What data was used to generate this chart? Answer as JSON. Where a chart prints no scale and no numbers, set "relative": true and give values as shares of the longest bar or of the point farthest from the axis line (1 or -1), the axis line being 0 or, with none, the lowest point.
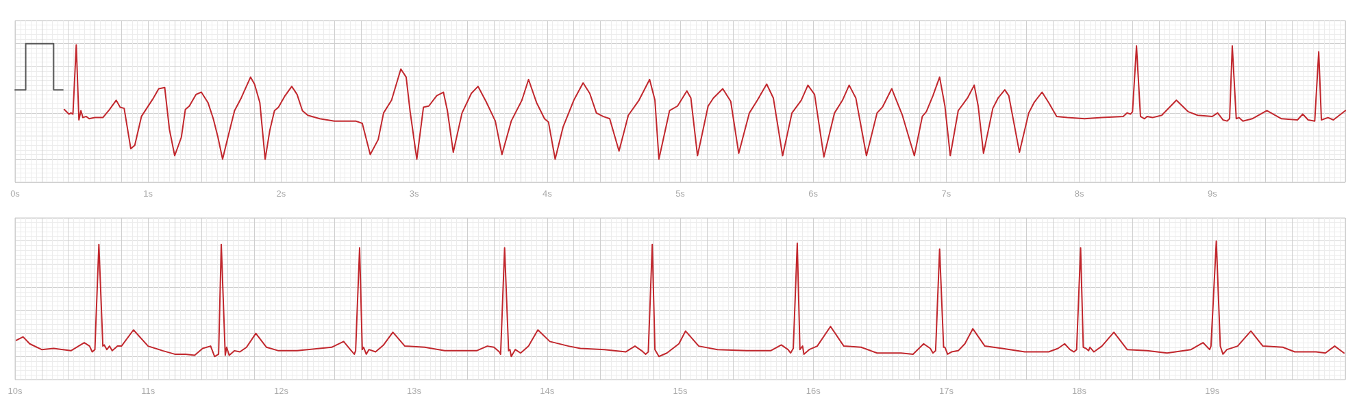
{
  "chart_data": [
    {
      "type": "line",
      "relative": true,
      "xlim": [
        0,
        10
      ],
      "grid": true,
      "marker": "none",
      "line_style": "solid",
      "xticks": [
        {
          "value": 0,
          "label": "0s"
        },
        {
          "value": 0.2,
          "label": null
        },
        {
          "value": 0.4,
          "label": null
        },
        {
          "value": 0.6,
          "label": null
        },
        {
          "value": 0.8,
          "label": null
        },
        {
          "value": 1,
          "label": "1s"
        },
        {
          "value": 1.2,
          "label": null
        },
        {
          "value": 1.4,
          "label": null
        },
        {
          "value": 1.6,
          "label": null
        },
        {
          "value": 1.8,
          "label": null
        },
        {
          "value": 2,
          "label": "2s"
        },
        {
          "value": 2.2,
          "label": null
        },
        {
          "value": 2.4,
          "label": null
        },
        {
          "value": 2.6,
          "label": null
        },
        {
          "value": 2.8,
          "label": null
        },
        {
          "value": 3,
          "label": "3s"
        },
        {
          "value": 3.2,
          "label": null
        },
        {
          "value": 3.4,
          "label": null
        },
        {
          "value": 3.6,
          "label": null
        },
        {
          "value": 3.8,
          "label": null
        },
        {
          "value": 4,
          "label": "4s"
        },
        {
          "value": 4.2,
          "label": null
        },
        {
          "value": 4.4,
          "label": null
        },
        {
          "value": 4.6,
          "label": null
        },
        {
          "value": 4.8,
          "label": null
        },
        {
          "value": 5,
          "label": "5s"
        },
        {
          "value": 5.2,
          "label": null
        },
        {
          "value": 5.4,
          "label": null
        },
        {
          "value": 5.6,
          "label": null
        },
        {
          "value": 5.8,
          "label": null
        },
        {
          "value": 6,
          "label": "6s"
        },
        {
          "value": 6.2,
          "label": null
        },
        {
          "value": 6.4,
          "label": null
        },
        {
          "value": 6.6,
          "label": null
        },
        {
          "value": 6.8,
          "label": null
        },
        {
          "value": 7,
          "label": "7s"
        },
        {
          "value": 7.2,
          "label": null
        },
        {
          "value": 7.4,
          "label": null
        },
        {
          "value": 7.6,
          "label": null
        },
        {
          "value": 7.8,
          "label": null
        },
        {
          "value": 8,
          "label": "8s"
        },
        {
          "value": 8.2,
          "label": null
        },
        {
          "value": 8.4,
          "label": null
        },
        {
          "value": 8.6,
          "label": null
        },
        {
          "value": 8.8,
          "label": null
        },
        {
          "value": 9,
          "label": "9s"
        },
        {
          "value": 9.2,
          "label": null
        },
        {
          "value": 9.4,
          "label": null
        },
        {
          "value": 9.6,
          "label": null
        },
        {
          "value": 9.8,
          "label": null
        },
        {
          "value": 10,
          "label": null
        }
      ],
      "series": [
        {
          "color": "#555555",
          "x": [
            0,
            0.08,
            0.08,
            0.29,
            0.29,
            0.36
          ],
          "values": [
            0.6,
            0.6,
            1,
            1,
            0.6,
            0.6
          ]
        },
        {
          "color": "#c1272d",
          "x": [
            0.37,
            0.405,
            0.42,
            0.435,
            0.46,
            0.48,
            0.495,
            0.51,
            0.535,
            0.557,
            0.6,
            0.66,
            0.71,
            0.76,
            0.79,
            0.82,
            0.87,
            0.9,
            0.95,
            1.035,
            1.08,
            1.125,
            1.16,
            1.2,
            1.25,
            1.28,
            1.31,
            1.36,
            1.4,
            1.45,
            1.49,
            1.525,
            1.56,
            1.6,
            1.65,
            1.7,
            1.77,
            1.8,
            1.84,
            1.88,
            1.915,
            1.95,
            1.98,
            2.03,
            2.08,
            2.12,
            2.16,
            2.2,
            2.29,
            2.4,
            2.5,
            2.56,
            2.61,
            2.67,
            2.73,
            2.77,
            2.83,
            2.9,
            2.94,
            2.97,
            3.02,
            3.07,
            3.11,
            3.17,
            3.22,
            3.25,
            3.294,
            3.36,
            3.43,
            3.48,
            3.54,
            3.61,
            3.66,
            3.73,
            3.81,
            3.86,
            3.92,
            3.98,
            4.01,
            4.06,
            4.12,
            4.2,
            4.27,
            4.32,
            4.37,
            4.42,
            4.47,
            4.54,
            4.61,
            4.69,
            4.77,
            4.81,
            4.84,
            4.92,
            4.98,
            5.05,
            5.08,
            5.13,
            5.21,
            5.25,
            5.32,
            5.38,
            5.44,
            5.52,
            5.58,
            5.65,
            5.7,
            5.77,
            5.84,
            5.91,
            5.96,
            6.01,
            6.08,
            6.16,
            6.22,
            6.27,
            6.32,
            6.4,
            6.48,
            6.52,
            6.59,
            6.67,
            6.76,
            6.82,
            6.85,
            6.9,
            6.95,
            6.99,
            7.03,
            7.09,
            7.16,
            7.21,
            7.24,
            7.28,
            7.35,
            7.39,
            7.44,
            7.47,
            7.55,
            7.62,
            7.66,
            7.72,
            7.77,
            7.83,
            7.91,
            8.04,
            8.17,
            8.33,
            8.36,
            8.385,
            8.4,
            8.43,
            8.46,
            8.49,
            8.51,
            8.55,
            8.62,
            8.73,
            8.82,
            8.89,
            9,
            9.04,
            9.08,
            9.11,
            9.13,
            9.15,
            9.18,
            9.2,
            9.23,
            9.3,
            9.41,
            9.52,
            9.64,
            9.68,
            9.72,
            9.77,
            9.8,
            9.82,
            9.87,
            9.91,
            10
          ],
          "values": [
            0.43,
            0.39,
            0.4,
            0.39,
            0.99,
            0.34,
            0.42,
            0.36,
            0.37,
            0.35,
            0.36,
            0.36,
            0.43,
            0.51,
            0.45,
            0.44,
            0.09,
            0.12,
            0.37,
            0.52,
            0.61,
            0.62,
            0.26,
            0.03,
            0.19,
            0.43,
            0.46,
            0.56,
            0.58,
            0.49,
            0.35,
            0.19,
            0,
            0.19,
            0.42,
            0.53,
            0.71,
            0.65,
            0.49,
            0,
            0.25,
            0.42,
            0.45,
            0.55,
            0.63,
            0.56,
            0.42,
            0.38,
            0.35,
            0.33,
            0.33,
            0.33,
            0.31,
            0.04,
            0.17,
            0.4,
            0.51,
            0.78,
            0.71,
            0.41,
            0,
            0.45,
            0.46,
            0.55,
            0.58,
            0.42,
            0.06,
            0.4,
            0.57,
            0.63,
            0.5,
            0.33,
            0.04,
            0.33,
            0.51,
            0.69,
            0.49,
            0.35,
            0.32,
            0,
            0.28,
            0.51,
            0.66,
            0.57,
            0.4,
            0.37,
            0.35,
            0.07,
            0.38,
            0.51,
            0.69,
            0.51,
            0,
            0.42,
            0.46,
            0.59,
            0.53,
            0.03,
            0.46,
            0.53,
            0.61,
            0.5,
            0.05,
            0.4,
            0.51,
            0.65,
            0.53,
            0.03,
            0.4,
            0.51,
            0.64,
            0.56,
            0.02,
            0.4,
            0.51,
            0.64,
            0.53,
            0.03,
            0.4,
            0.45,
            0.61,
            0.38,
            0.03,
            0.37,
            0.41,
            0.55,
            0.71,
            0.46,
            0.03,
            0.42,
            0.53,
            0.64,
            0.46,
            0.05,
            0.44,
            0.53,
            0.6,
            0.55,
            0.06,
            0.4,
            0.49,
            0.58,
            0.49,
            0.37,
            0.36,
            0.35,
            0.36,
            0.37,
            0.4,
            0.39,
            0.41,
            0.98,
            0.37,
            0.35,
            0.37,
            0.36,
            0.38,
            0.51,
            0.41,
            0.38,
            0.37,
            0.4,
            0.34,
            0.33,
            0.35,
            0.98,
            0.35,
            0.36,
            0.33,
            0.35,
            0.42,
            0.35,
            0.34,
            0.39,
            0.34,
            0.33,
            0.93,
            0.34,
            0.36,
            0.34,
            0.42
          ]
        }
      ]
    },
    {
      "type": "line",
      "relative": true,
      "xlim": [
        10,
        20
      ],
      "grid": true,
      "marker": "none",
      "line_style": "solid",
      "xticks": [
        {
          "value": 10,
          "label": "10s"
        },
        {
          "value": 10.2,
          "label": null
        },
        {
          "value": 10.4,
          "label": null
        },
        {
          "value": 10.6,
          "label": null
        },
        {
          "value": 10.8,
          "label": null
        },
        {
          "value": 11,
          "label": "11s"
        },
        {
          "value": 11.2,
          "label": null
        },
        {
          "value": 11.4,
          "label": null
        },
        {
          "value": 11.6,
          "label": null
        },
        {
          "value": 11.8,
          "label": null
        },
        {
          "value": 12,
          "label": "12s"
        },
        {
          "value": 12.2,
          "label": null
        },
        {
          "value": 12.4,
          "label": null
        },
        {
          "value": 12.6,
          "label": null
        },
        {
          "value": 12.8,
          "label": null
        },
        {
          "value": 13,
          "label": "13s"
        },
        {
          "value": 13.2,
          "label": null
        },
        {
          "value": 13.4,
          "label": null
        },
        {
          "value": 13.6,
          "label": null
        },
        {
          "value": 13.8,
          "label": null
        },
        {
          "value": 14,
          "label": "14s"
        },
        {
          "value": 14.2,
          "label": null
        },
        {
          "value": 14.4,
          "label": null
        },
        {
          "value": 14.6,
          "label": null
        },
        {
          "value": 14.8,
          "label": null
        },
        {
          "value": 15,
          "label": "15s"
        },
        {
          "value": 15.2,
          "label": null
        },
        {
          "value": 15.4,
          "label": null
        },
        {
          "value": 15.6,
          "label": null
        },
        {
          "value": 15.8,
          "label": null
        },
        {
          "value": 16,
          "label": "16s"
        },
        {
          "value": 16.2,
          "label": null
        },
        {
          "value": 16.4,
          "label": null
        },
        {
          "value": 16.6,
          "label": null
        },
        {
          "value": 16.8,
          "label": null
        },
        {
          "value": 17,
          "label": "17s"
        },
        {
          "value": 17.2,
          "label": null
        },
        {
          "value": 17.4,
          "label": null
        },
        {
          "value": 17.6,
          "label": null
        },
        {
          "value": 17.8,
          "label": null
        },
        {
          "value": 18,
          "label": "18s"
        },
        {
          "value": 18.2,
          "label": null
        },
        {
          "value": 18.4,
          "label": null
        },
        {
          "value": 18.6,
          "label": null
        },
        {
          "value": 18.8,
          "label": null
        },
        {
          "value": 19,
          "label": "19s"
        },
        {
          "value": 19.2,
          "label": null
        },
        {
          "value": 19.4,
          "label": null
        },
        {
          "value": 19.6,
          "label": null
        },
        {
          "value": 19.8,
          "label": null
        },
        {
          "value": 20,
          "label": null
        }
      ],
      "series": [
        {
          "color": "#c1272d",
          "x": [
            10.01,
            10.06,
            10.11,
            10.2,
            10.29,
            10.42,
            10.52,
            10.56,
            10.58,
            10.6,
            10.63,
            10.66,
            10.67,
            10.69,
            10.71,
            10.73,
            10.77,
            10.8,
            10.89,
            11,
            11.11,
            11.2,
            11.28,
            11.35,
            11.41,
            11.47,
            11.5,
            11.53,
            11.55,
            11.58,
            11.59,
            11.61,
            11.65,
            11.69,
            11.74,
            11.81,
            11.89,
            11.98,
            12.12,
            12.29,
            12.38,
            12.47,
            12.52,
            12.55,
            12.56,
            12.59,
            12.61,
            12.62,
            12.64,
            12.66,
            12.71,
            12.77,
            12.84,
            12.93,
            13.08,
            13.23,
            13.36,
            13.47,
            13.55,
            13.6,
            13.64,
            13.65,
            13.68,
            13.71,
            13.72,
            13.73,
            13.76,
            13.8,
            13.86,
            13.93,
            14.02,
            14.16,
            14.25,
            14.43,
            14.59,
            14.66,
            14.71,
            14.74,
            14.76,
            14.79,
            14.81,
            14.84,
            14.9,
            14.99,
            15.04,
            15.14,
            15.28,
            15.5,
            15.68,
            15.76,
            15.81,
            15.83,
            15.85,
            15.88,
            15.9,
            15.92,
            15.93,
            15.97,
            16.03,
            16.13,
            16.23,
            16.36,
            16.48,
            16.66,
            16.75,
            16.83,
            16.88,
            16.9,
            16.92,
            16.95,
            16.98,
            16.99,
            17.01,
            17.04,
            17.09,
            17.14,
            17.2,
            17.29,
            17.42,
            17.59,
            17.77,
            17.84,
            17.89,
            17.93,
            17.96,
            17.98,
            18.01,
            18.03,
            18.05,
            18.07,
            18.08,
            18.11,
            18.17,
            18.26,
            18.36,
            18.51,
            18.66,
            18.84,
            18.93,
            18.98,
            18.99,
            19.03,
            19.06,
            19.08,
            19.11,
            19.19,
            19.29,
            19.38,
            19.53,
            19.62,
            19.78,
            19.85,
            19.92,
            19.99
          ],
          "values": [
            0.14,
            0.17,
            0.11,
            0.06,
            0.07,
            0.05,
            0.12,
            0.09,
            0.04,
            0.06,
            0.97,
            0.09,
            0.1,
            0.06,
            0.09,
            0.05,
            0.09,
            0.09,
            0.23,
            0.09,
            0.05,
            0.02,
            0.02,
            0.01,
            0.07,
            0.09,
            0,
            0.02,
            0.97,
            0.01,
            0.08,
            0.01,
            0.05,
            0.04,
            0.08,
            0.2,
            0.08,
            0.05,
            0.05,
            0.07,
            0.08,
            0.13,
            0.06,
            0.02,
            0.05,
            0.94,
            0.06,
            0.08,
            0.02,
            0.06,
            0.04,
            0.1,
            0.21,
            0.09,
            0.08,
            0.05,
            0.05,
            0.05,
            0.09,
            0.08,
            0.04,
            0.02,
            0.94,
            0.05,
            0.06,
            0,
            0.06,
            0.03,
            0.09,
            0.23,
            0.13,
            0.09,
            0.07,
            0.06,
            0.04,
            0.09,
            0.05,
            0.02,
            0.04,
            0.97,
            0.06,
            0,
            0.03,
            0.11,
            0.22,
            0.09,
            0.06,
            0.05,
            0.05,
            0.1,
            0.06,
            0.03,
            0.07,
            0.98,
            0.06,
            0.09,
            0.02,
            0.06,
            0.09,
            0.26,
            0.09,
            0.08,
            0.03,
            0.03,
            0.02,
            0.11,
            0.07,
            0.03,
            0.05,
            0.93,
            0.08,
            0.08,
            0.02,
            0.04,
            0.05,
            0.11,
            0.24,
            0.09,
            0.07,
            0.04,
            0.04,
            0.07,
            0.11,
            0.06,
            0.04,
            0.06,
            0.94,
            0.08,
            0.07,
            0.05,
            0.08,
            0.04,
            0.09,
            0.21,
            0.06,
            0.05,
            0.03,
            0.06,
            0.12,
            0.06,
            0.09,
            1,
            0.09,
            0.02,
            0.06,
            0.09,
            0.22,
            0.09,
            0.08,
            0.04,
            0.04,
            0.03,
            0.09,
            0.03
          ]
        }
      ]
    }
  ]
}
